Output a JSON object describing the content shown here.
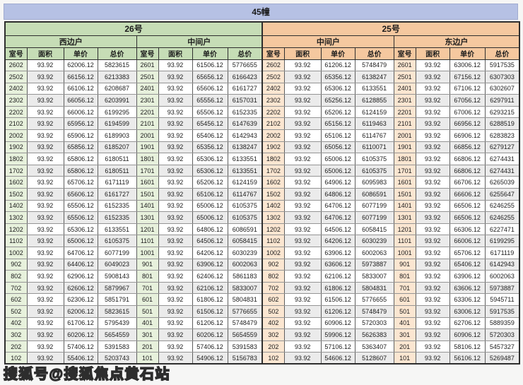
{
  "title": "45幢",
  "watermark": "搜狐号@搜狐焦点黄石站",
  "columns": [
    "室号",
    "面积",
    "单价",
    "总价"
  ],
  "colors": {
    "title_bar": "#b6c1e4",
    "section_26": "#c6ddb6",
    "section_26_room_cell": "#e7f1dc",
    "section_25": "#f5c89f",
    "section_25_room_cell": "#fbe6d1",
    "alt_row": "#ebebeb"
  },
  "sections": [
    {
      "name": "26号",
      "theme": "green",
      "groups": [
        {
          "name": "西边户",
          "rows": [
            [
              "2602",
              "93.92",
              "62006.12",
              "5823615"
            ],
            [
              "2502",
              "93.92",
              "66156.12",
              "6213383"
            ],
            [
              "2402",
              "93.92",
              "66106.12",
              "6208687"
            ],
            [
              "2302",
              "93.92",
              "66056.12",
              "6203991"
            ],
            [
              "2202",
              "93.92",
              "66006.12",
              "6199295"
            ],
            [
              "2102",
              "93.92",
              "65956.12",
              "6194599"
            ],
            [
              "2002",
              "93.92",
              "65906.12",
              "6189903"
            ],
            [
              "1902",
              "93.92",
              "65856.12",
              "6185207"
            ],
            [
              "1802",
              "93.92",
              "65806.12",
              "6180511"
            ],
            [
              "1702",
              "93.92",
              "65806.12",
              "6180511"
            ],
            [
              "1602",
              "93.92",
              "65706.12",
              "6171119"
            ],
            [
              "1502",
              "93.92",
              "65606.12",
              "6161727"
            ],
            [
              "1402",
              "93.92",
              "65506.12",
              "6152335"
            ],
            [
              "1302",
              "93.92",
              "65506.12",
              "6152335"
            ],
            [
              "1202",
              "93.92",
              "65306.12",
              "6133551"
            ],
            [
              "1102",
              "93.92",
              "65006.12",
              "6105375"
            ],
            [
              "1002",
              "93.92",
              "64706.12",
              "6077199"
            ],
            [
              "902",
              "93.92",
              "64406.12",
              "6049023"
            ],
            [
              "802",
              "93.92",
              "62906.12",
              "5908143"
            ],
            [
              "702",
              "93.92",
              "62606.12",
              "5879967"
            ],
            [
              "602",
              "93.92",
              "62306.12",
              "5851791"
            ],
            [
              "502",
              "93.92",
              "62006.12",
              "5823615"
            ],
            [
              "402",
              "93.92",
              "61706.12",
              "5795439"
            ],
            [
              "302",
              "93.92",
              "60206.12",
              "5654559"
            ],
            [
              "202",
              "93.92",
              "57406.12",
              "5391583"
            ],
            [
              "102",
              "93.92",
              "55406.12",
              "5203743"
            ]
          ]
        },
        {
          "name": "中间户",
          "rows": [
            [
              "2601",
              "93.92",
              "61506.12",
              "5776655"
            ],
            [
              "2501",
              "93.92",
              "65656.12",
              "6166423"
            ],
            [
              "2401",
              "93.92",
              "65606.12",
              "6161727"
            ],
            [
              "2301",
              "93.92",
              "65556.12",
              "6157031"
            ],
            [
              "2201",
              "93.92",
              "65506.12",
              "6152335"
            ],
            [
              "2101",
              "93.92",
              "65456.12",
              "6147639"
            ],
            [
              "2001",
              "93.92",
              "65406.12",
              "6142943"
            ],
            [
              "1901",
              "93.92",
              "65356.12",
              "6138247"
            ],
            [
              "1801",
              "93.92",
              "65306.12",
              "6133551"
            ],
            [
              "1701",
              "93.92",
              "65306.12",
              "6133551"
            ],
            [
              "1601",
              "93.92",
              "65206.12",
              "6124159"
            ],
            [
              "1501",
              "93.92",
              "65106.12",
              "6114767"
            ],
            [
              "1401",
              "93.92",
              "65006.12",
              "6105375"
            ],
            [
              "1301",
              "93.92",
              "65006.12",
              "6105375"
            ],
            [
              "1201",
              "93.92",
              "64806.12",
              "6086591"
            ],
            [
              "1101",
              "93.92",
              "64506.12",
              "6058415"
            ],
            [
              "1001",
              "93.92",
              "64206.12",
              "6030239"
            ],
            [
              "901",
              "93.92",
              "63906.12",
              "6002063"
            ],
            [
              "801",
              "93.92",
              "62406.12",
              "5861183"
            ],
            [
              "701",
              "93.92",
              "62106.12",
              "5833007"
            ],
            [
              "601",
              "93.92",
              "61806.12",
              "5804831"
            ],
            [
              "501",
              "93.92",
              "61506.12",
              "5776655"
            ],
            [
              "401",
              "93.92",
              "61206.12",
              "5748479"
            ],
            [
              "301",
              "93.92",
              "60206.12",
              "5654559"
            ],
            [
              "201",
              "93.92",
              "57406.12",
              "5391583"
            ],
            [
              "101",
              "93.92",
              "54906.12",
              "5156783"
            ]
          ]
        }
      ]
    },
    {
      "name": "25号",
      "theme": "orange",
      "groups": [
        {
          "name": "中间户",
          "rows": [
            [
              "2602",
              "93.92",
              "61206.12",
              "5748479"
            ],
            [
              "2502",
              "93.92",
              "65356.12",
              "6138247"
            ],
            [
              "2402",
              "93.92",
              "65306.12",
              "6133551"
            ],
            [
              "2302",
              "93.92",
              "65256.12",
              "6128855"
            ],
            [
              "2202",
              "93.92",
              "65206.12",
              "6124159"
            ],
            [
              "2102",
              "93.92",
              "65156.12",
              "6119463"
            ],
            [
              "2002",
              "93.92",
              "65106.12",
              "6114767"
            ],
            [
              "1902",
              "93.92",
              "65056.12",
              "6110071"
            ],
            [
              "1802",
              "93.92",
              "65006.12",
              "6105375"
            ],
            [
              "1702",
              "93.92",
              "65006.12",
              "6105375"
            ],
            [
              "1602",
              "93.92",
              "64906.12",
              "6095983"
            ],
            [
              "1502",
              "93.92",
              "64806.12",
              "6086591"
            ],
            [
              "1402",
              "93.92",
              "64706.12",
              "6077199"
            ],
            [
              "1302",
              "93.92",
              "64706.12",
              "6077199"
            ],
            [
              "1202",
              "93.92",
              "64506.12",
              "6058415"
            ],
            [
              "1102",
              "93.92",
              "64206.12",
              "6030239"
            ],
            [
              "1002",
              "93.92",
              "63906.12",
              "6002063"
            ],
            [
              "902",
              "93.92",
              "63606.12",
              "5973887"
            ],
            [
              "802",
              "93.92",
              "62106.12",
              "5833007"
            ],
            [
              "702",
              "93.92",
              "61806.12",
              "5804831"
            ],
            [
              "602",
              "93.92",
              "61506.12",
              "5776655"
            ],
            [
              "502",
              "93.92",
              "61206.12",
              "5748479"
            ],
            [
              "402",
              "93.92",
              "60906.12",
              "5720303"
            ],
            [
              "302",
              "93.92",
              "59906.12",
              "5626383"
            ],
            [
              "202",
              "93.92",
              "57106.12",
              "5363407"
            ],
            [
              "102",
              "93.92",
              "54606.12",
              "5128607"
            ]
          ]
        },
        {
          "name": "东边户",
          "rows": [
            [
              "2601",
              "93.92",
              "63006.12",
              "5917535"
            ],
            [
              "2501",
              "93.92",
              "67156.12",
              "6307303"
            ],
            [
              "2401",
              "93.92",
              "67106.12",
              "6302607"
            ],
            [
              "2301",
              "93.92",
              "67056.12",
              "6297911"
            ],
            [
              "2201",
              "93.92",
              "67006.12",
              "6293215"
            ],
            [
              "2101",
              "93.92",
              "66956.12",
              "6288519"
            ],
            [
              "2001",
              "93.92",
              "66906.12",
              "6283823"
            ],
            [
              "1901",
              "93.92",
              "66856.12",
              "6279127"
            ],
            [
              "1801",
              "93.92",
              "66806.12",
              "6274431"
            ],
            [
              "1701",
              "93.92",
              "66806.12",
              "6274431"
            ],
            [
              "1601",
              "93.92",
              "66706.12",
              "6265039"
            ],
            [
              "1501",
              "93.92",
              "66606.12",
              "6255647"
            ],
            [
              "1401",
              "93.92",
              "66506.12",
              "6246255"
            ],
            [
              "1301",
              "93.92",
              "66506.12",
              "6246255"
            ],
            [
              "1201",
              "93.92",
              "66306.12",
              "6227471"
            ],
            [
              "1101",
              "93.92",
              "66006.12",
              "6199295"
            ],
            [
              "1001",
              "93.92",
              "65706.12",
              "6171119"
            ],
            [
              "901",
              "93.92",
              "65406.12",
              "6142943"
            ],
            [
              "801",
              "93.92",
              "63906.12",
              "6002063"
            ],
            [
              "701",
              "93.92",
              "63606.12",
              "5973887"
            ],
            [
              "601",
              "93.92",
              "63306.12",
              "5945711"
            ],
            [
              "501",
              "93.92",
              "63006.12",
              "5917535"
            ],
            [
              "401",
              "93.92",
              "62706.12",
              "5889359"
            ],
            [
              "301",
              "93.92",
              "60906.12",
              "5720303"
            ],
            [
              "201",
              "93.92",
              "58106.12",
              "5457327"
            ],
            [
              "101",
              "93.92",
              "56106.12",
              "5269487"
            ]
          ]
        }
      ]
    }
  ]
}
